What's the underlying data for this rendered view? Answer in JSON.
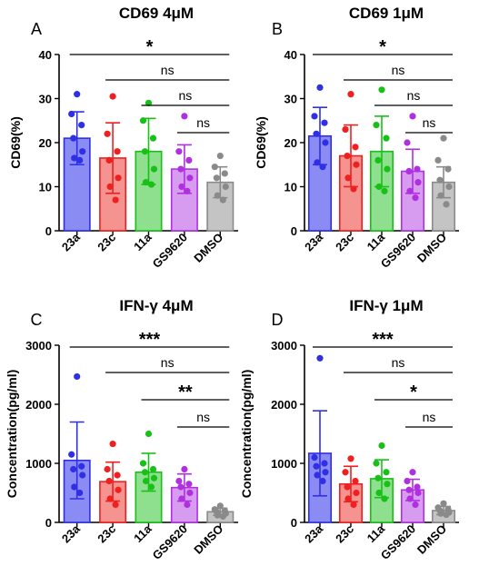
{
  "colors": {
    "23a": "#2f2fe6",
    "23c": "#ef2020",
    "11a": "#18c018",
    "GS9620": "#b030e0",
    "DMSO": "#8a8a8a",
    "23a_fill": "#8a8cf3",
    "23c_fill": "#f49390",
    "11a_fill": "#8ee08e",
    "GS9620_fill": "#d79cf0",
    "DMSO_fill": "#c4c4c4"
  },
  "chart_data": [
    {
      "type": "bar",
      "panel_letter": "A",
      "title": "CD69 4μM",
      "ylabel": "CD69(%)",
      "ylim": [
        0,
        40
      ],
      "yticks": [
        "0",
        "10",
        "20",
        "30",
        "40"
      ],
      "categories": [
        "23a",
        "23c",
        "11a",
        "GS9620",
        "DMSO"
      ],
      "means": [
        21,
        16.5,
        18,
        14,
        11
      ],
      "sd": [
        6,
        8,
        7.5,
        5.5,
        3.5
      ],
      "points": [
        [
          31,
          26.5,
          24,
          21,
          18,
          16.5,
          16
        ],
        [
          30.5,
          22,
          18,
          16,
          12,
          10,
          7
        ],
        [
          29,
          25,
          21,
          18,
          14,
          11,
          10.5
        ],
        [
          26,
          18,
          16,
          14,
          12,
          10,
          9
        ],
        [
          17,
          14.5,
          13,
          12,
          10,
          8,
          7
        ]
      ],
      "significance": [
        {
          "from": 0,
          "to": 4,
          "label": "*"
        },
        {
          "from": 1,
          "to": 4,
          "label": "ns"
        },
        {
          "from": 2,
          "to": 4,
          "label": "ns"
        },
        {
          "from": 3,
          "to": 4,
          "label": "ns"
        }
      ]
    },
    {
      "type": "bar",
      "panel_letter": "B",
      "title": "CD69 1μM",
      "ylabel": "CD69(%)",
      "ylim": [
        0,
        40
      ],
      "yticks": [
        "0",
        "10",
        "20",
        "30",
        "40"
      ],
      "categories": [
        "23a",
        "23c",
        "11a",
        "GS9620",
        "DMSO"
      ],
      "means": [
        21.5,
        17,
        18,
        13.5,
        11
      ],
      "sd": [
        6.5,
        7,
        8,
        5,
        3.5
      ],
      "points": [
        [
          32.5,
          26,
          24.5,
          22,
          20,
          15.5,
          14.5
        ],
        [
          31,
          23,
          19,
          17,
          15,
          12,
          9.5
        ],
        [
          32,
          24,
          21,
          16,
          14,
          10,
          9
        ],
        [
          26,
          20,
          14,
          13.5,
          11,
          9,
          7.5
        ],
        [
          21,
          16,
          14,
          11.5,
          10,
          8,
          6
        ]
      ],
      "significance": [
        {
          "from": 0,
          "to": 4,
          "label": "*"
        },
        {
          "from": 1,
          "to": 4,
          "label": "ns"
        },
        {
          "from": 2,
          "to": 4,
          "label": "ns"
        },
        {
          "from": 3,
          "to": 4,
          "label": "ns"
        }
      ]
    },
    {
      "type": "bar",
      "panel_letter": "C",
      "title": "IFN-γ 4μM",
      "ylabel": "Concentration(pg/ml)",
      "ylim": [
        0,
        3000
      ],
      "yticks": [
        "0",
        "1000",
        "2000",
        "3000"
      ],
      "categories": [
        "23a",
        "23c",
        "11a",
        "GS9620",
        "DMSO"
      ],
      "means": [
        1050,
        690,
        850,
        590,
        180
      ],
      "sd": [
        650,
        330,
        320,
        230,
        60
      ],
      "points": [
        [
          2470,
          1150,
          950,
          900,
          800,
          600,
          500
        ],
        [
          1330,
          900,
          800,
          700,
          550,
          400,
          300
        ],
        [
          1500,
          1000,
          900,
          850,
          750,
          700,
          600
        ],
        [
          900,
          700,
          650,
          600,
          500,
          400,
          300
        ],
        [
          280,
          220,
          200,
          180,
          150,
          120,
          100
        ]
      ],
      "significance": [
        {
          "from": 0,
          "to": 4,
          "label": "***"
        },
        {
          "from": 1,
          "to": 4,
          "label": "ns"
        },
        {
          "from": 2,
          "to": 4,
          "label": "**"
        },
        {
          "from": 3,
          "to": 4,
          "label": "ns"
        }
      ]
    },
    {
      "type": "bar",
      "panel_letter": "D",
      "title": "IFN-γ 1μM",
      "ylabel": "Concentration(pg/ml)",
      "ylim": [
        0,
        3000
      ],
      "yticks": [
        "0",
        "1000",
        "2000",
        "3000"
      ],
      "categories": [
        "23a",
        "23c",
        "11a",
        "GS9620",
        "DMSO"
      ],
      "means": [
        1170,
        650,
        740,
        550,
        200
      ],
      "sd": [
        720,
        300,
        320,
        180,
        70
      ],
      "points": [
        [
          2780,
          1100,
          1000,
          950,
          850,
          800,
          700
        ],
        [
          1080,
          850,
          700,
          600,
          500,
          400,
          300
        ],
        [
          1300,
          1000,
          850,
          750,
          650,
          500,
          400
        ],
        [
          850,
          700,
          600,
          550,
          500,
          400,
          300
        ],
        [
          320,
          250,
          220,
          200,
          170,
          150,
          130
        ]
      ],
      "significance": [
        {
          "from": 0,
          "to": 4,
          "label": "***"
        },
        {
          "from": 1,
          "to": 4,
          "label": "ns"
        },
        {
          "from": 2,
          "to": 4,
          "label": "*"
        },
        {
          "from": 3,
          "to": 4,
          "label": "ns"
        }
      ]
    }
  ]
}
